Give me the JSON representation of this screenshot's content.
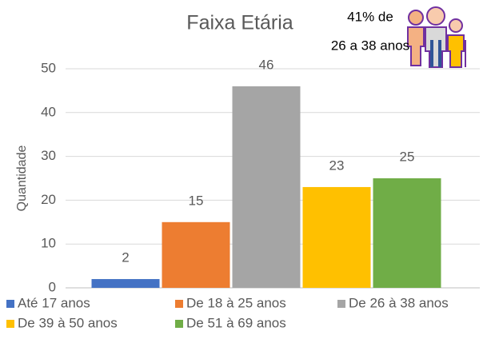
{
  "chart_data": {
    "type": "bar",
    "title": "Faixa Etária",
    "y_label": "Quantidade",
    "annotation": [
      "41% de",
      "26 a 38 anos"
    ],
    "categories": [
      null
    ],
    "series": [
      {
        "name": "Até 17 anos",
        "color": "#4472c4",
        "values": [
          2
        ]
      },
      {
        "name": "De 18 à 25 anos",
        "color": "#ed7d31",
        "values": [
          15
        ]
      },
      {
        "name": "De 26 à 38 anos",
        "color": "#a5a5a5",
        "values": [
          46
        ]
      },
      {
        "name": "De 39 à 50 anos",
        "color": "#ffc000",
        "values": [
          23
        ]
      },
      {
        "name": "De 51 à 69 anos",
        "color": "#70ad47",
        "values": [
          25
        ]
      }
    ],
    "ylim": [
      0,
      50
    ],
    "yticks": [
      0,
      10,
      20,
      30,
      40,
      50
    ],
    "grid": true,
    "legend": "bottom"
  }
}
